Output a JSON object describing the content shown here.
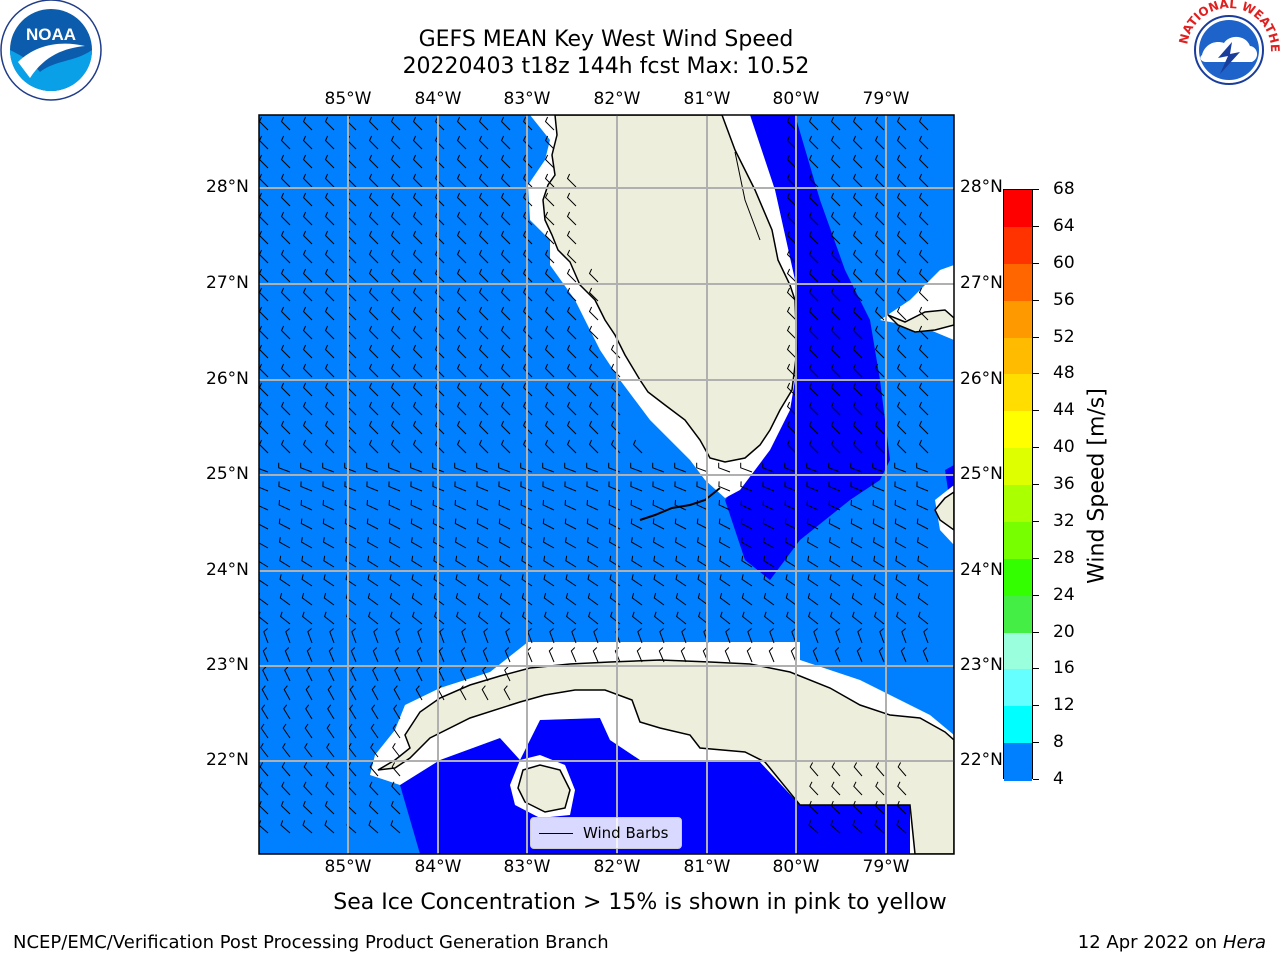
{
  "header": {
    "title_line1": "GEFS MEAN Key West Wind Speed",
    "title_line2": "20220403 t18z 144h fcst   Max: 10.52"
  },
  "logos": {
    "left": "NOAA",
    "left_ring": "NATIONAL OCEANIC AND ATMOSPHERIC ADMINISTRATION · U.S. DEPARTMENT OF COMMERCE",
    "right_ring": "NATIONAL WEATHER SERVICE"
  },
  "chart_data": {
    "type": "heatmap",
    "projection": "lat-lon",
    "lon_range": [
      -86.0,
      -78.3
    ],
    "lat_range": [
      21.0,
      28.75
    ],
    "lon_ticks": [
      "85°W",
      "84°W",
      "83°W",
      "82°W",
      "81°W",
      "80°W",
      "79°W"
    ],
    "lat_ticks": [
      "28°N",
      "27°N",
      "26°N",
      "25°N",
      "24°N",
      "23°N",
      "22°N"
    ],
    "grid": true,
    "legend": {
      "label": "Wind Barbs",
      "placement": "bottom-center"
    },
    "colorbar": {
      "label": "Wind Speed [m/s]",
      "ticks": [
        68,
        64,
        60,
        56,
        52,
        48,
        44,
        40,
        36,
        32,
        28,
        24,
        20,
        16,
        12,
        8,
        4
      ],
      "colors": [
        "#ff0000",
        "#ff3300",
        "#ff6600",
        "#ff9900",
        "#ffbb00",
        "#ffdd00",
        "#ffff00",
        "#ddff00",
        "#aaff00",
        "#77ff00",
        "#33ff00",
        "#44ee44",
        "#99ffdd",
        "#66ffff",
        "#00ffff",
        "#0080ff",
        "#0000ff"
      ]
    },
    "max_value": 10.52
  },
  "note": "Sea Ice Concentration > 15% is shown in pink to yellow",
  "footer": {
    "left": "NCEP/EMC/Verification Post Processing Product Generation Branch",
    "date": "12 Apr 2022 on",
    "machine": "Hera"
  }
}
